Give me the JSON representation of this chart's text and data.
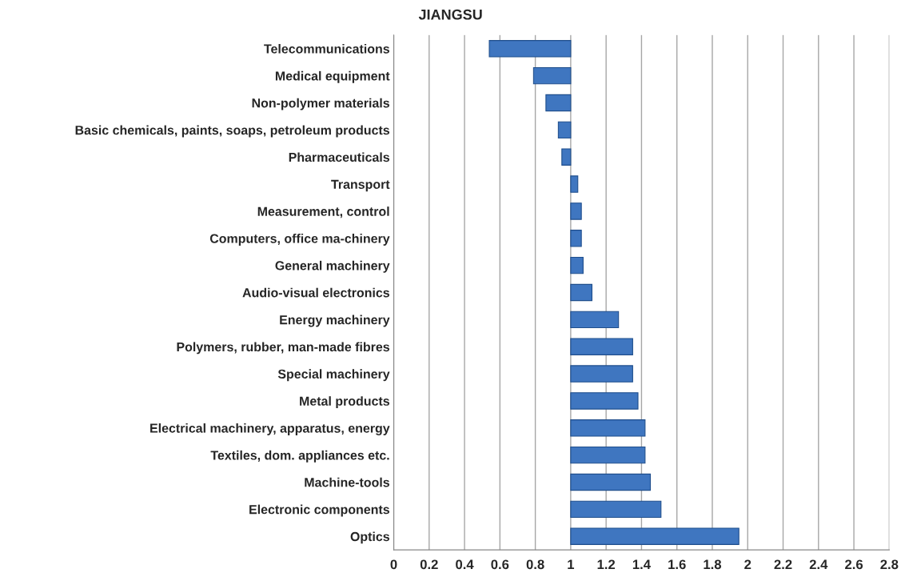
{
  "chart_data": {
    "type": "bar",
    "orientation": "horizontal",
    "title": "JIANGSU",
    "categories": [
      "Telecommunications",
      "Medical equipment",
      "Non-polymer materials",
      "Basic chemicals, paints, soaps, petroleum products",
      "Pharmaceuticals",
      "Transport",
      "Measurement, control",
      "Computers, office ma-chinery",
      "General machinery",
      "Audio-visual electronics",
      "Energy machinery",
      "Polymers, rubber, man-made fibres",
      "Special machinery",
      "Metal products",
      "Electrical machinery, apparatus, energy",
      "Textiles, dom. appliances etc.",
      "Machine-tools",
      "Electronic components",
      "Optics"
    ],
    "values": [
      -0.46,
      -0.21,
      -0.14,
      -0.07,
      -0.05,
      0.04,
      0.06,
      0.06,
      0.07,
      0.12,
      0.27,
      0.35,
      0.35,
      0.38,
      0.42,
      0.42,
      0.45,
      0.51,
      0.95
    ],
    "base": [
      1,
      1,
      1,
      1,
      1,
      1,
      1,
      1,
      1,
      1,
      1,
      1,
      1,
      1,
      1,
      1,
      1,
      1,
      1
    ],
    "color": "#3f76c0",
    "xlim": [
      0,
      2.8
    ],
    "xticks": [
      0,
      0.2,
      0.4,
      0.6,
      0.8,
      1,
      1.2,
      1.4,
      1.6,
      1.8,
      2,
      2.2,
      2.4,
      2.6,
      2.8
    ],
    "grid": "x",
    "legend": false
  }
}
